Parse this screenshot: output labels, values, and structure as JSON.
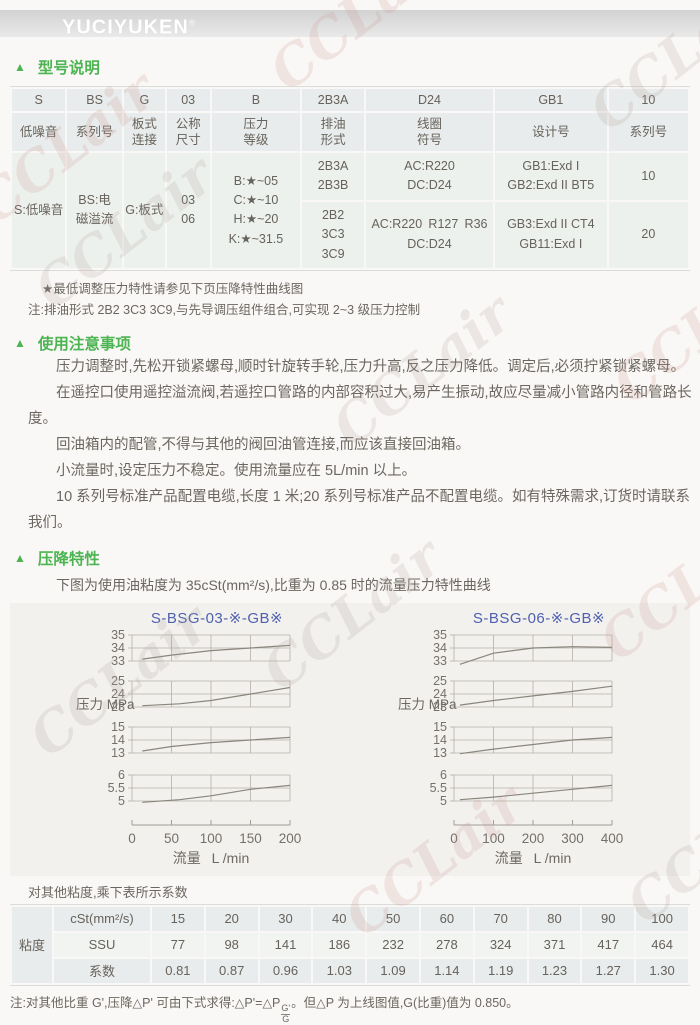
{
  "page": {
    "watermark": "CCLair"
  },
  "logo": {
    "brand": "YUCIYUKEN",
    "reg": "®"
  },
  "model_section": {
    "title": "型号说明",
    "table": {
      "codes": [
        "S",
        "BS",
        "G",
        "03",
        "B",
        "2B3A",
        "D24",
        "GB1",
        "10"
      ],
      "labels": [
        "低噪音",
        "系列号",
        "板式\n连接",
        "公称\n尺寸",
        "压力\n等级",
        "排油\n形式",
        "线圈\n符号",
        "设计号",
        "系列号"
      ],
      "noise": "S:低噪音",
      "series_name": "BS:电\n磁溢流",
      "connection": "G:板式",
      "sizes": [
        "03",
        "06"
      ],
      "pressure_grades": [
        "B:★~05",
        "C:★~10",
        "H:★~20",
        "K:★~31.5"
      ],
      "groups": [
        {
          "drain": [
            "2B3A",
            "2B3B"
          ],
          "coil": [
            "AC:R220",
            "DC:D24"
          ],
          "design": [
            "GB1:Exd I",
            "GB2:Exd II BT5"
          ],
          "series": "10"
        },
        {
          "drain": [
            "2B2",
            "3C3",
            "3C9"
          ],
          "coil": [
            "AC:R220 R127 R36",
            "DC:D24"
          ],
          "design": [
            "GB3:Exd II CT4",
            "GB11:Exd I"
          ],
          "series": "20"
        }
      ]
    },
    "star_note": "★最低调整压力特性请参见下页压降特性曲线图",
    "note": "注:排油形式 2B2 3C3 3C9,与先导调压组件组合,可实现 2~3 级压力控制"
  },
  "usage_section": {
    "title": "使用注意事项",
    "paragraphs": [
      "压力调整时,先松开锁紧螺母,顺时针旋转手轮,压力升高,反之压力降低。调定后,必须拧紧锁紧螺母。",
      "在遥控口使用遥控溢流阀,若遥控口管路的内部容积过大,易产生振动,故应尽量减小管路内径和管路长度。",
      "回油箱内的配管,不得与其他的阀回油管连接,而应该直接回油箱。",
      "小流量时,设定压力不稳定。使用流量应在 5L/min 以上。",
      "10 系列号标准产品配置电缆,长度 1 米;20 系列号标准产品不配置电缆。如有特殊需求,订货时请联系我们。"
    ]
  },
  "pressure_section": {
    "title": "压降特性",
    "subtitle": "下图为使用油粘度为 35cSt(mm²/s),比重为 0.85 时的流量压力特性曲线"
  },
  "chart_data": [
    {
      "type": "line",
      "title": "S-BSG-03-※-GB※",
      "xlabel": "流量  L /min",
      "ylabel": "压力 MPa",
      "xlim": [
        0,
        200
      ],
      "x_ticks": [
        0,
        50,
        100,
        150,
        200
      ],
      "grid": true,
      "panels": [
        {
          "ylim": [
            33,
            35
          ],
          "yticks": [
            35,
            34,
            33
          ],
          "points": [
            [
              13,
              33.15
            ],
            [
              50,
              33.45
            ],
            [
              100,
              33.8
            ],
            [
              150,
              34.0
            ],
            [
              200,
              34.2
            ]
          ]
        },
        {
          "ylim": [
            23,
            25
          ],
          "yticks": [
            25,
            24,
            23
          ],
          "points": [
            [
              13,
              23.1
            ],
            [
              60,
              23.25
            ],
            [
              100,
              23.5
            ],
            [
              150,
              24.0
            ],
            [
              200,
              24.5
            ]
          ]
        },
        {
          "ylim": [
            13,
            15
          ],
          "yticks": [
            15,
            14,
            13
          ],
          "points": [
            [
              13,
              13.15
            ],
            [
              50,
              13.5
            ],
            [
              100,
              13.8
            ],
            [
              150,
              14.0
            ],
            [
              200,
              14.2
            ]
          ]
        },
        {
          "ylim": [
            5,
            6
          ],
          "yticks": [
            6,
            5.5,
            5
          ],
          "points": [
            [
              13,
              4.95
            ],
            [
              60,
              5.05
            ],
            [
              100,
              5.2
            ],
            [
              150,
              5.45
            ],
            [
              200,
              5.6
            ]
          ]
        }
      ]
    },
    {
      "type": "line",
      "title": "S-BSG-06-※-GB※",
      "xlabel": "流量  L /min",
      "ylabel": "压力 MPa",
      "xlim": [
        0,
        400
      ],
      "x_ticks": [
        0,
        100,
        200,
        300,
        400
      ],
      "grid": true,
      "panels": [
        {
          "ylim": [
            33,
            35
          ],
          "yticks": [
            35,
            34,
            33
          ],
          "points": [
            [
              15,
              32.75
            ],
            [
              100,
              33.6
            ],
            [
              200,
              34.0
            ],
            [
              300,
              34.1
            ],
            [
              400,
              34.05
            ]
          ]
        },
        {
          "ylim": [
            23,
            25
          ],
          "yticks": [
            25,
            24,
            23
          ],
          "points": [
            [
              15,
              23.15
            ],
            [
              100,
              23.5
            ],
            [
              200,
              23.85
            ],
            [
              300,
              24.2
            ],
            [
              400,
              24.6
            ]
          ]
        },
        {
          "ylim": [
            13,
            15
          ],
          "yticks": [
            15,
            14,
            13
          ],
          "points": [
            [
              15,
              12.95
            ],
            [
              100,
              13.3
            ],
            [
              200,
              13.65
            ],
            [
              300,
              14.0
            ],
            [
              400,
              14.2
            ]
          ]
        },
        {
          "ylim": [
            5,
            6
          ],
          "yticks": [
            6,
            5.5,
            5
          ],
          "points": [
            [
              15,
              5.05
            ],
            [
              100,
              5.15
            ],
            [
              200,
              5.3
            ],
            [
              300,
              5.45
            ],
            [
              400,
              5.6
            ]
          ]
        }
      ]
    }
  ],
  "viscosity_section": {
    "intro": "对其他粘度,乘下表所示系数",
    "row_label": "粘度",
    "rows": [
      {
        "label": "cSt(mm²/s)",
        "values": [
          "15",
          "20",
          "30",
          "40",
          "50",
          "60",
          "70",
          "80",
          "90",
          "100"
        ]
      },
      {
        "label": "SSU",
        "values": [
          "77",
          "98",
          "141",
          "186",
          "232",
          "278",
          "324",
          "371",
          "417",
          "464"
        ]
      },
      {
        "label": "系数",
        "values": [
          "0.81",
          "0.87",
          "0.96",
          "1.03",
          "1.09",
          "1.14",
          "1.19",
          "1.23",
          "1.27",
          "1.30"
        ]
      }
    ],
    "note_pre": "注:对其他比重 G',压降△P' 可由下式求得:△P'=△P",
    "frac_top": "G'",
    "frac_bottom": "G",
    "note_post": "。但△P 为上线图值,G(比重)值为 0.850。"
  }
}
